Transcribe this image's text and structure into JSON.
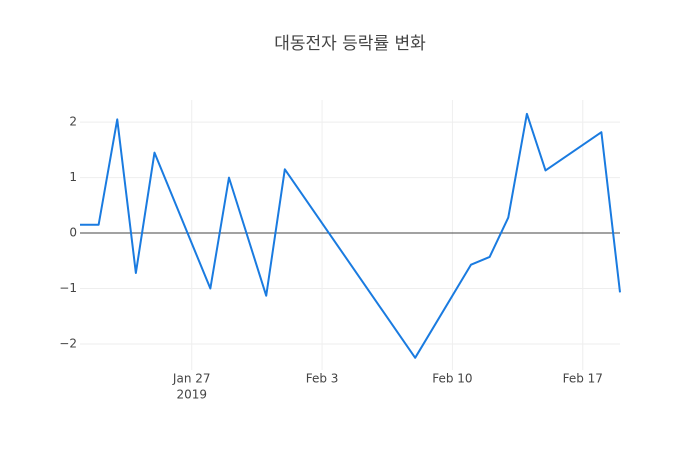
{
  "chart_data": {
    "type": "line",
    "title": "대동전자 등락률 변화",
    "x": [
      "2019-01-21",
      "2019-01-22",
      "2019-01-23",
      "2019-01-24",
      "2019-01-25",
      "2019-01-28",
      "2019-01-29",
      "2019-01-31",
      "2019-02-01",
      "2019-02-08",
      "2019-02-11",
      "2019-02-12",
      "2019-02-13",
      "2019-02-14",
      "2019-02-15",
      "2019-02-18",
      "2019-02-19"
    ],
    "values": [
      0.15,
      0.15,
      2.05,
      -0.72,
      1.45,
      -1.0,
      1.0,
      -1.13,
      1.15,
      -2.25,
      -0.57,
      -0.43,
      0.28,
      2.15,
      1.13,
      1.82,
      -1.07
    ],
    "color": "#1a7be0",
    "xlim": [
      "2019-01-21",
      "2019-02-19"
    ],
    "xticks": [
      {
        "value": "2019-01-27",
        "label": "Jan 27"
      },
      {
        "value": "2019-02-03",
        "label": "Feb 3"
      },
      {
        "value": "2019-02-10",
        "label": "Feb 10"
      },
      {
        "value": "2019-02-17",
        "label": "Feb 17"
      }
    ],
    "x_year_label": "2019",
    "ylim": [
      -2.47,
      2.4
    ],
    "yticks": [
      {
        "value": -2,
        "label": "−2"
      },
      {
        "value": -1,
        "label": "−1"
      },
      0,
      1,
      2
    ],
    "grid": true
  }
}
